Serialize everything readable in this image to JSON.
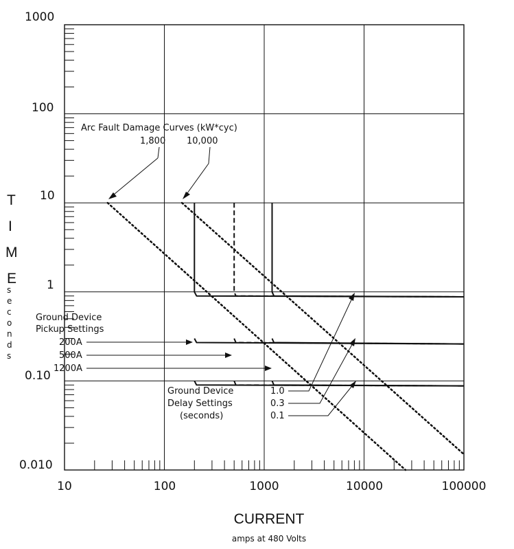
{
  "chart_data": {
    "type": "line",
    "title": "",
    "xscale": "log",
    "yscale": "log",
    "xlim": [
      10,
      100000
    ],
    "ylim": [
      0.01,
      1000
    ],
    "x_tick_labels": [
      "10",
      "100",
      "1000",
      "10000",
      "100000"
    ],
    "y_tick_labels": [
      "0.010",
      "0.10",
      "1",
      "10",
      "100",
      "1000"
    ],
    "xlabel": "CURRENT",
    "xlabel_sub": "amps at 480 Volts",
    "ylabel_letters": [
      "T",
      "I",
      "M",
      "E"
    ],
    "ylabel_sub_letters": [
      "s",
      "e",
      "c",
      "o",
      "n",
      "d",
      "s"
    ],
    "grid": true,
    "series": [
      {
        "name": "1,800",
        "style": "dotted",
        "x": [
          27,
          26000
        ],
        "y": [
          10,
          0.01
        ]
      },
      {
        "name": "10,000",
        "style": "dotted",
        "x": [
          150,
          100000
        ],
        "y": [
          10,
          0.015
        ]
      },
      {
        "name": "200A",
        "style": "solid",
        "pickup": 200,
        "delay_curves": [
          {
            "x": [
              200,
              200,
              210,
              100000
            ],
            "y": [
              10,
              1.0,
              0.9,
              0.88
            ]
          },
          {
            "x": [
              200,
              210,
              100000
            ],
            "y": [
              0.3,
              0.27,
              0.26
            ]
          },
          {
            "x": [
              200,
              210,
              100000
            ],
            "y": [
              0.1,
              0.09,
              0.088
            ]
          }
        ]
      },
      {
        "name": "500A",
        "style": "dashed",
        "pickup": 500,
        "delay_curves": [
          {
            "x": [
              500,
              500,
              520,
              100000
            ],
            "y": [
              10,
              1.0,
              0.9,
              0.88
            ]
          },
          {
            "x": [
              500,
              520,
              100000
            ],
            "y": [
              0.3,
              0.27,
              0.26
            ]
          },
          {
            "x": [
              500,
              520,
              100000
            ],
            "y": [
              0.1,
              0.09,
              0.088
            ]
          }
        ]
      },
      {
        "name": "1200A",
        "style": "solid",
        "pickup": 1200,
        "delay_curves": [
          {
            "x": [
              1200,
              1200,
              1250,
              100000
            ],
            "y": [
              10,
              1.0,
              0.9,
              0.88
            ]
          },
          {
            "x": [
              1200,
              1250,
              100000
            ],
            "y": [
              0.3,
              0.27,
              0.26
            ]
          },
          {
            "x": [
              1200,
              1250,
              100000
            ],
            "y": [
              0.1,
              0.09,
              0.088
            ]
          }
        ]
      }
    ],
    "annotations": {
      "arc_fault_title": "Arc Fault Damage Curves (kW*cyc)",
      "arc_1800": "1,800",
      "arc_10000": "10,000",
      "pickup_title_1": "Ground Device",
      "pickup_title_2": "Pickup Settings",
      "pickup_200": "200A",
      "pickup_500": "500A",
      "pickup_1200": "1200A",
      "delay_title_1": "Ground Device",
      "delay_title_2": "Delay Settings",
      "delay_title_3": "(seconds)",
      "delay_1_0": "1.0",
      "delay_0_3": "0.3",
      "delay_0_1": "0.1"
    }
  }
}
